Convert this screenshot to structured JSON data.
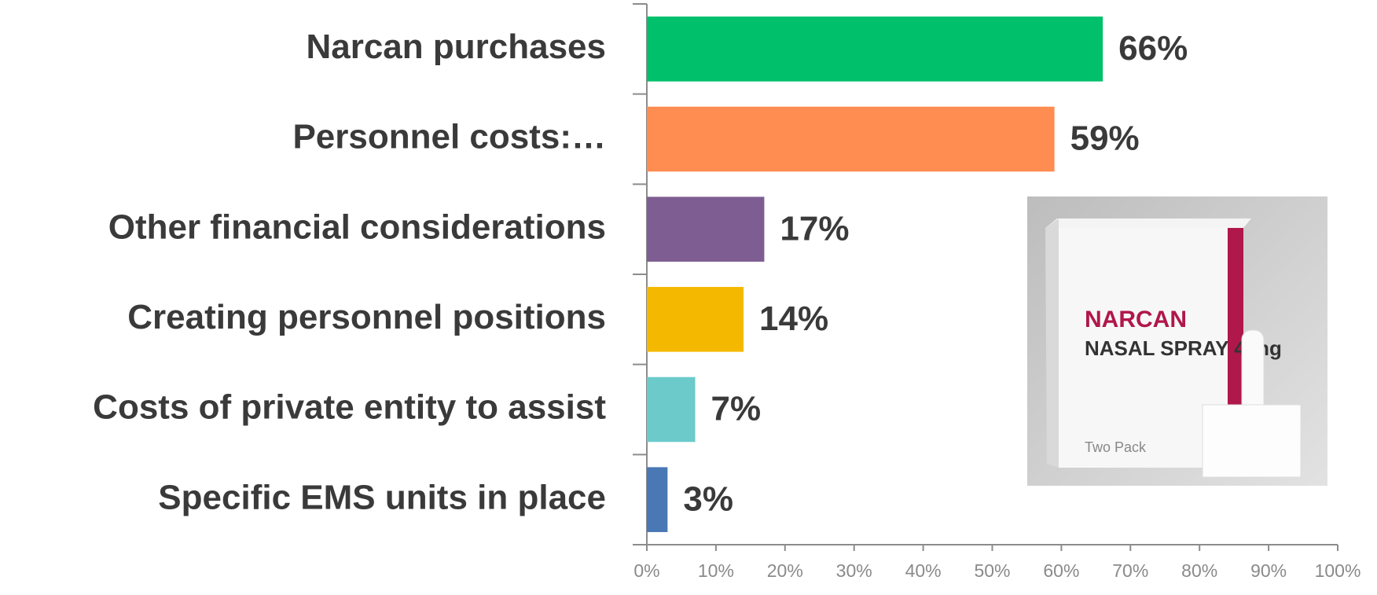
{
  "chart_data": {
    "type": "bar",
    "orientation": "horizontal",
    "categories": [
      "Narcan purchases",
      "Personnel costs:…",
      "Other financial considerations",
      "Creating personnel positions",
      "Costs of private entity to assist",
      "Specific EMS units in place"
    ],
    "values": [
      66,
      59,
      17,
      14,
      7,
      3
    ],
    "value_labels": [
      "66%",
      "59%",
      "17%",
      "14%",
      "7%",
      "3%"
    ],
    "colors": [
      "#00c06b",
      "#ff8c50",
      "#7e5e92",
      "#f5b800",
      "#6ccacb",
      "#4a78b5"
    ],
    "xlim": [
      0,
      100
    ],
    "xticks": [
      {
        "value": 0,
        "label": "0%"
      },
      {
        "value": 10,
        "label": "10%"
      },
      {
        "value": 20,
        "label": "20%"
      },
      {
        "value": 30,
        "label": "30%"
      },
      {
        "value": 40,
        "label": "40%"
      },
      {
        "value": 50,
        "label": "50%"
      },
      {
        "value": 60,
        "label": "60%"
      },
      {
        "value": 70,
        "label": "70%"
      },
      {
        "value": 80,
        "label": "80%"
      },
      {
        "value": 90,
        "label": "90%"
      },
      {
        "value": 100,
        "label": "100%"
      }
    ],
    "grid": false,
    "image_labels": [
      "NARCAN",
      "NASAL SPRAY 4 mg",
      "Two Pack"
    ]
  }
}
